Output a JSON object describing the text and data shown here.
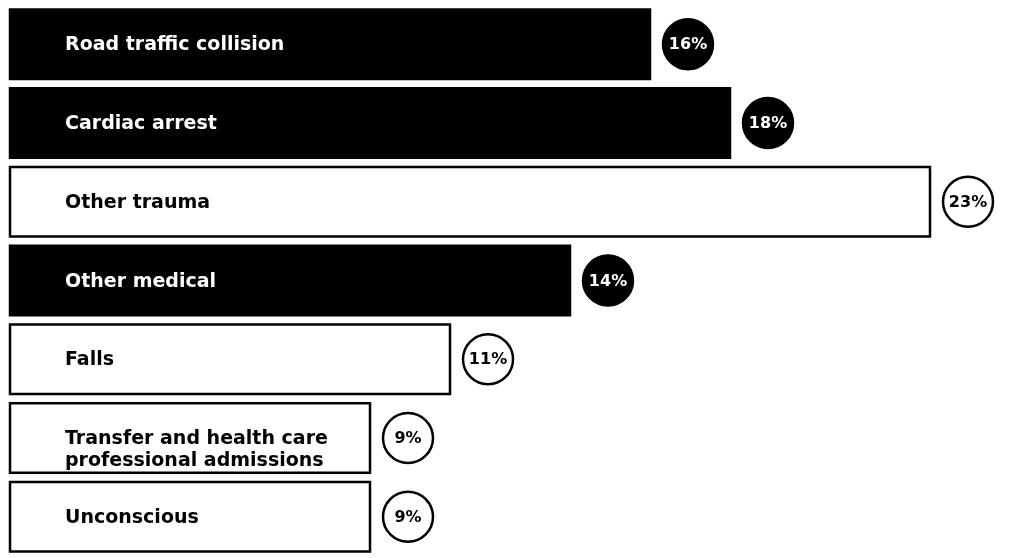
{
  "chart_data": {
    "type": "bar",
    "orientation": "horizontal",
    "categories": [
      "Road traffic collision",
      "Cardiac arrest",
      "Other trauma",
      "Other medical",
      "Falls",
      "Transfer and health care professional admissions",
      "Unconscious"
    ],
    "values": [
      16,
      18,
      23,
      14,
      11,
      9,
      9
    ],
    "value_labels": [
      "16%",
      "18%",
      "23%",
      "14%",
      "11%",
      "9%",
      "9%"
    ],
    "colors": [
      "#000000",
      "#000000",
      "#ffffff",
      "#000000",
      "#ffffff",
      "#ffffff",
      "#ffffff"
    ]
  }
}
